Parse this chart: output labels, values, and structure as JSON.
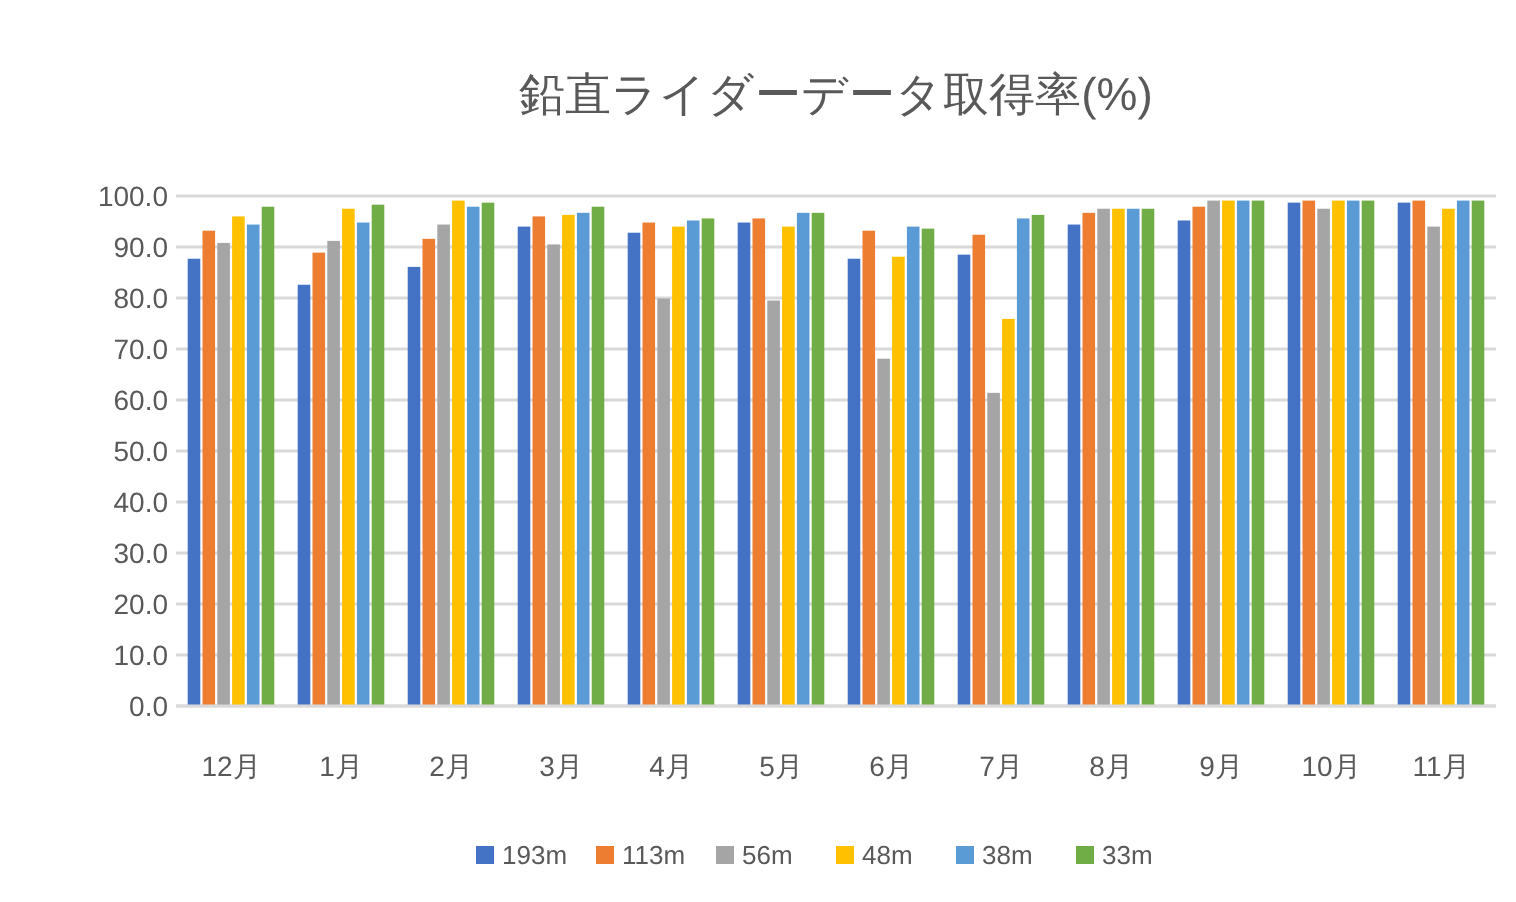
{
  "chart_data": {
    "type": "bar",
    "title": "鉛直ライダーデータ取得率(%)",
    "categories": [
      "12月",
      "1月",
      "2月",
      "3月",
      "4月",
      "5月",
      "6月",
      "7月",
      "8月",
      "9月",
      "10月",
      "11月"
    ],
    "series": [
      {
        "name": "193m",
        "color": "#4472c4",
        "values": [
          87.7,
          82.6,
          86.1,
          94.0,
          92.8,
          94.8,
          87.7,
          88.5,
          94.4,
          95.2,
          98.7,
          98.7
        ]
      },
      {
        "name": "113m",
        "color": "#ed7d31",
        "values": [
          93.2,
          88.9,
          91.6,
          96.0,
          94.8,
          95.6,
          93.2,
          92.4,
          96.7,
          97.9,
          99.1,
          99.1
        ]
      },
      {
        "name": "56m",
        "color": "#a5a5a5",
        "values": [
          90.8,
          91.2,
          94.4,
          90.5,
          79.9,
          79.5,
          68.1,
          61.4,
          97.5,
          99.1,
          97.5,
          94.0
        ]
      },
      {
        "name": "48m",
        "color": "#ffc000",
        "values": [
          96.0,
          97.5,
          99.1,
          96.3,
          94.0,
          94.0,
          88.1,
          75.9,
          97.5,
          99.1,
          99.1,
          97.5
        ]
      },
      {
        "name": "38m",
        "color": "#5b9bd5",
        "values": [
          94.4,
          94.8,
          97.9,
          96.7,
          95.2,
          96.7,
          94.0,
          95.6,
          97.5,
          99.1,
          99.1,
          99.1
        ]
      },
      {
        "name": "33m",
        "color": "#70ad47",
        "values": [
          97.9,
          98.3,
          98.7,
          97.9,
          95.6,
          96.7,
          93.6,
          96.3,
          97.5,
          99.1,
          99.1,
          99.1
        ]
      }
    ],
    "ylim": [
      0,
      100
    ],
    "yticks": [
      {
        "value": 0,
        "label": "0.0"
      },
      {
        "value": 10,
        "label": "10.0"
      },
      {
        "value": 20,
        "label": "20.0"
      },
      {
        "value": 30,
        "label": "30.0"
      },
      {
        "value": 40,
        "label": "40.0"
      },
      {
        "value": 50,
        "label": "50.0"
      },
      {
        "value": 60,
        "label": "60.0"
      },
      {
        "value": 70,
        "label": "70.0"
      },
      {
        "value": 80,
        "label": "80.0"
      },
      {
        "value": 90,
        "label": "90.0"
      },
      {
        "value": 100,
        "label": "100.0"
      }
    ],
    "grid": "y",
    "legend": "bottom"
  }
}
